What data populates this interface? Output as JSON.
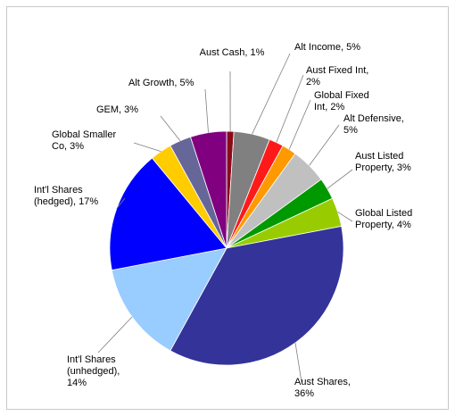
{
  "chart_data": {
    "type": "pie",
    "title": "",
    "slices": [
      {
        "label": [
          "Aust Cash, 1%"
        ],
        "value": 1,
        "color": "#8B0A1A"
      },
      {
        "label": [
          "Alt Income, 5%"
        ],
        "value": 5,
        "color": "#808080"
      },
      {
        "label": [
          "Aust Fixed Int,",
          "2%"
        ],
        "value": 2,
        "color": "#FF1A1A"
      },
      {
        "label": [
          "Global Fixed",
          "Int, 2%"
        ],
        "value": 2,
        "color": "#FF9900"
      },
      {
        "label": [
          "Alt Defensive,",
          "5%"
        ],
        "value": 5,
        "color": "#C0C0C0"
      },
      {
        "label": [
          "Aust Listed",
          "Property, 3%"
        ],
        "value": 3,
        "color": "#009900"
      },
      {
        "label": [
          "Global Listed",
          "Property, 4%"
        ],
        "value": 4,
        "color": "#99CC00"
      },
      {
        "label": [
          "Aust Shares,",
          "36%"
        ],
        "value": 36,
        "color": "#333399"
      },
      {
        "label": [
          "Int'l Shares",
          "(unhedged),",
          "14%"
        ],
        "value": 14,
        "color": "#99CCFF"
      },
      {
        "label": [
          "Int'l Shares",
          "(hedged), 17%"
        ],
        "value": 17,
        "color": "#0000FF"
      },
      {
        "label": [
          "Global Smaller",
          "Co, 3%"
        ],
        "value": 3,
        "color": "#FFCC00"
      },
      {
        "label": [
          "GEM, 3%"
        ],
        "value": 3,
        "color": "#666699"
      },
      {
        "label": [
          "Alt Growth, 5%"
        ],
        "value": 5,
        "color": "#800080"
      }
    ]
  }
}
